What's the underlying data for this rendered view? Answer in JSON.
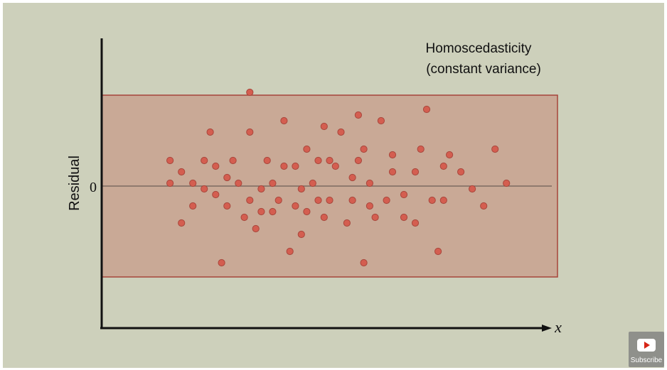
{
  "chart_data": {
    "type": "scatter",
    "title_line1": "Homoscedasticity",
    "title_line2": "(constant variance)",
    "ylabel": "Residual",
    "xlabel": "x",
    "y_tick_label": "0",
    "band": {
      "y_min": -16,
      "y_max": 16,
      "note": "shaded constant-variance band"
    },
    "xlim": [
      0,
      100
    ],
    "ylim": [
      -25,
      26
    ],
    "points": [
      {
        "x": 15.0,
        "y": 4.5
      },
      {
        "x": 15.0,
        "y": 0.5
      },
      {
        "x": 17.5,
        "y": 2.5
      },
      {
        "x": 17.5,
        "y": -6.5
      },
      {
        "x": 20.0,
        "y": 0.5
      },
      {
        "x": 20.0,
        "y": -3.5
      },
      {
        "x": 22.5,
        "y": 4.5
      },
      {
        "x": 22.5,
        "y": -0.5
      },
      {
        "x": 23.8,
        "y": 9.5
      },
      {
        "x": 25.0,
        "y": 3.5
      },
      {
        "x": 25.0,
        "y": -1.5
      },
      {
        "x": 26.3,
        "y": -13.5
      },
      {
        "x": 27.5,
        "y": 1.5
      },
      {
        "x": 27.5,
        "y": -3.5
      },
      {
        "x": 28.8,
        "y": 4.5
      },
      {
        "x": 30.0,
        "y": 0.5
      },
      {
        "x": 31.3,
        "y": -5.5
      },
      {
        "x": 32.5,
        "y": 16.5
      },
      {
        "x": 32.5,
        "y": 9.5
      },
      {
        "x": 32.5,
        "y": -2.5
      },
      {
        "x": 33.8,
        "y": -7.5
      },
      {
        "x": 35.0,
        "y": -0.5
      },
      {
        "x": 35.0,
        "y": -4.5
      },
      {
        "x": 36.3,
        "y": 4.5
      },
      {
        "x": 37.5,
        "y": 0.5
      },
      {
        "x": 37.5,
        "y": -4.5
      },
      {
        "x": 38.8,
        "y": -2.5
      },
      {
        "x": 40.0,
        "y": 11.5
      },
      {
        "x": 40.0,
        "y": 3.5
      },
      {
        "x": 41.3,
        "y": -11.5
      },
      {
        "x": 42.5,
        "y": 3.5
      },
      {
        "x": 42.5,
        "y": -3.5
      },
      {
        "x": 43.8,
        "y": -0.5
      },
      {
        "x": 43.8,
        "y": -8.5
      },
      {
        "x": 45.0,
        "y": 6.5
      },
      {
        "x": 45.0,
        "y": -4.5
      },
      {
        "x": 46.3,
        "y": 0.5
      },
      {
        "x": 47.5,
        "y": 4.5
      },
      {
        "x": 47.5,
        "y": -2.5
      },
      {
        "x": 48.8,
        "y": 10.5
      },
      {
        "x": 48.8,
        "y": -5.5
      },
      {
        "x": 50.0,
        "y": 4.5
      },
      {
        "x": 50.0,
        "y": -2.5
      },
      {
        "x": 51.3,
        "y": 3.5
      },
      {
        "x": 52.5,
        "y": 9.5
      },
      {
        "x": 53.8,
        "y": -6.5
      },
      {
        "x": 55.0,
        "y": 1.5
      },
      {
        "x": 55.0,
        "y": -2.5
      },
      {
        "x": 56.3,
        "y": 12.5
      },
      {
        "x": 56.3,
        "y": 4.5
      },
      {
        "x": 57.5,
        "y": 6.5
      },
      {
        "x": 57.5,
        "y": -13.5
      },
      {
        "x": 58.8,
        "y": 0.5
      },
      {
        "x": 58.8,
        "y": -3.5
      },
      {
        "x": 60.0,
        "y": -5.5
      },
      {
        "x": 61.3,
        "y": 11.5
      },
      {
        "x": 62.5,
        "y": -2.5
      },
      {
        "x": 63.8,
        "y": 5.5
      },
      {
        "x": 63.8,
        "y": 2.5
      },
      {
        "x": 66.3,
        "y": -1.5
      },
      {
        "x": 66.3,
        "y": -5.5
      },
      {
        "x": 68.8,
        "y": 2.5
      },
      {
        "x": 68.8,
        "y": -6.5
      },
      {
        "x": 70.0,
        "y": 6.5
      },
      {
        "x": 71.3,
        "y": 13.5
      },
      {
        "x": 72.5,
        "y": -2.5
      },
      {
        "x": 73.8,
        "y": -11.5
      },
      {
        "x": 75.0,
        "y": 3.5
      },
      {
        "x": 75.0,
        "y": -2.5
      },
      {
        "x": 76.3,
        "y": 5.5
      },
      {
        "x": 78.8,
        "y": 2.5
      },
      {
        "x": 81.3,
        "y": -0.5
      },
      {
        "x": 83.8,
        "y": -3.5
      },
      {
        "x": 86.3,
        "y": 6.5
      },
      {
        "x": 88.8,
        "y": 0.5
      }
    ]
  },
  "subscribe": {
    "label": "Subscribe",
    "icon": "youtube-play-icon"
  },
  "colors": {
    "background": "#cdd0bb",
    "band_fill": "#c9a996",
    "band_stroke": "#a6443a",
    "point_fill": "#d45e50",
    "point_stroke": "#a8473c",
    "axis": "#111111",
    "zero_line": "#7c6a60"
  }
}
